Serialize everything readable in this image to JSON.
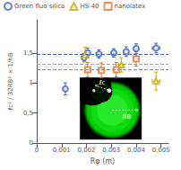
{
  "chart_data": {
    "type": "scatter",
    "xlabel": "Rφ (m)",
    "ylabel": "ℓc² / 32RB² × 1/hB",
    "xlim": [
      0,
      0.0053
    ],
    "ylim": [
      0,
      2.05
    ],
    "xticks": [
      0,
      {
        "value": 0.001,
        "label": "0,001"
      },
      {
        "value": 0.002,
        "label": "0,002"
      },
      {
        "value": 0.003,
        "label": "0,003"
      },
      {
        "value": 0.004,
        "label": "0,004"
      },
      {
        "value": 0.005,
        "label": "0,005"
      }
    ],
    "yticks": [
      0,
      {
        "value": 0.5,
        "label": "0,5"
      },
      1,
      {
        "value": 1.5,
        "label": "1,5"
      }
    ],
    "grid": false,
    "legend": "upper left",
    "annotations": [
      "ℓc",
      "RB"
    ],
    "series": [
      {
        "name": "Green fluo silica",
        "color": "#4466bb",
        "marker": "circle",
        "x": [
          0.00115,
          0.0019,
          0.00205,
          0.0025,
          0.0031,
          0.0036,
          0.004,
          0.0048
        ],
        "values": [
          0.9,
          1.42,
          1.5,
          1.48,
          1.5,
          1.52,
          1.57,
          1.58
        ],
        "xerr": [
          5e-05,
          5e-05,
          5e-05,
          0.0001,
          0.0001,
          0.0001,
          0.0001,
          0.00015
        ],
        "yerr": [
          0.1,
          0.07,
          0.08,
          0.07,
          0.07,
          0.08,
          0.08,
          0.08
        ],
        "hline": 1.475
      },
      {
        "name": "HS-40",
        "color": "#ccaa00",
        "marker": "triangle",
        "x": [
          0.00195,
          0.0034,
          0.0048
        ],
        "values": [
          1.47,
          1.3,
          1.03
        ],
        "xerr": [
          5e-05,
          0.0001,
          0.00015
        ],
        "yerr": [
          0.12,
          0.12,
          0.15
        ],
        "hline": 1.315
      },
      {
        "name": "nanolatex",
        "color": "#dd7733",
        "marker": "square",
        "x": [
          0.00205,
          0.0026,
          0.0032,
          0.004
        ],
        "values": [
          1.22,
          1.21,
          1.22,
          1.4
        ],
        "xerr": [
          5e-05,
          0.0001,
          0.0001,
          0.0001
        ],
        "yerr": [
          0.12,
          0.12,
          0.12,
          0.12
        ],
        "hline": 1.215
      }
    ]
  }
}
